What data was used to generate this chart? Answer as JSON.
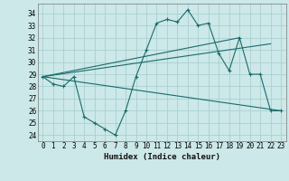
{
  "title": "",
  "xlabel": "Humidex (Indice chaleur)",
  "bg_color": "#cce8e8",
  "line_color": "#1a6b6b",
  "grid_color": "#aacfcf",
  "ylim": [
    23.5,
    34.8
  ],
  "xlim": [
    -0.5,
    23.5
  ],
  "yticks": [
    24,
    25,
    26,
    27,
    28,
    29,
    30,
    31,
    32,
    33,
    34
  ],
  "xticks": [
    0,
    1,
    2,
    3,
    4,
    5,
    6,
    7,
    8,
    9,
    10,
    11,
    12,
    13,
    14,
    15,
    16,
    17,
    18,
    19,
    20,
    21,
    22,
    23
  ],
  "line1_x": [
    0,
    1,
    2,
    3,
    4,
    5,
    6,
    7,
    8,
    9,
    10,
    11,
    12,
    13,
    14,
    15,
    16,
    17,
    18,
    19,
    20,
    21,
    22,
    23
  ],
  "line1_y": [
    28.8,
    28.2,
    28.0,
    28.8,
    25.5,
    25.0,
    24.5,
    24.0,
    26.0,
    28.8,
    31.0,
    33.2,
    33.5,
    33.3,
    34.3,
    33.0,
    33.2,
    30.7,
    29.3,
    32.0,
    29.0,
    29.0,
    26.0,
    26.0
  ],
  "line2_x": [
    0,
    19
  ],
  "line2_y": [
    28.8,
    32.0
  ],
  "line3_x": [
    0,
    22
  ],
  "line3_y": [
    28.8,
    31.5
  ],
  "line4_x": [
    0,
    23
  ],
  "line4_y": [
    28.8,
    26.0
  ]
}
